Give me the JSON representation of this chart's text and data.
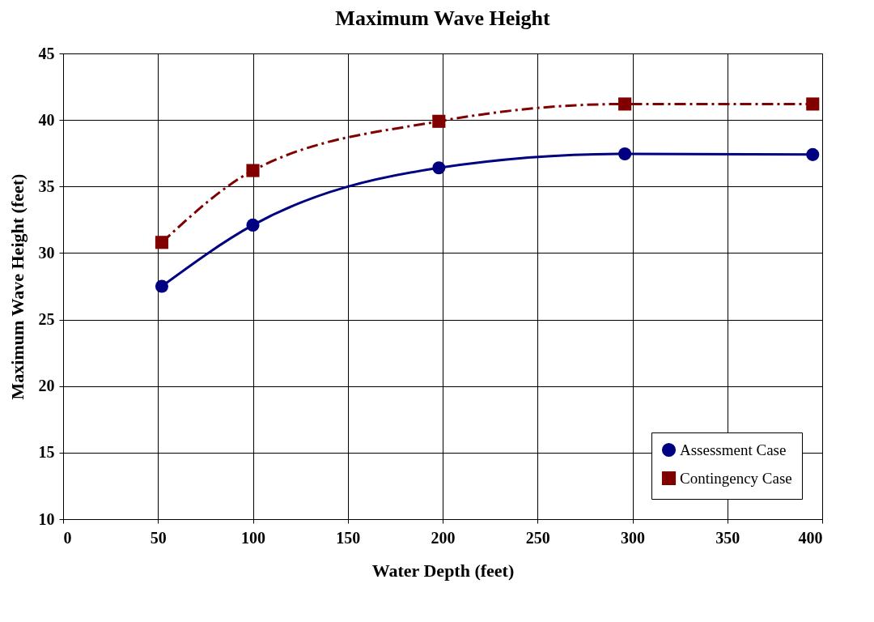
{
  "chart_data": {
    "type": "line",
    "title": "Maximum Wave Height",
    "xlabel": "Water Depth (feet)",
    "ylabel": "Maximum Wave Height (feet)",
    "x": [
      52,
      100,
      198,
      296,
      395
    ],
    "series": [
      {
        "name": "Assessment Case",
        "color": "#000080",
        "values": [
          27.5,
          32.1,
          36.4,
          37.45,
          37.4
        ],
        "marker": "circle",
        "line_style": "solid"
      },
      {
        "name": "Contingency Case",
        "color": "#800000",
        "values": [
          30.8,
          36.2,
          39.9,
          41.2,
          41.2
        ],
        "marker": "square",
        "line_style": "dashed"
      }
    ],
    "xlim": [
      0,
      400
    ],
    "xticks": [
      0,
      50,
      100,
      150,
      200,
      250,
      300,
      350,
      400
    ],
    "ylim": [
      10,
      45
    ],
    "yticks": [
      10,
      15,
      20,
      25,
      30,
      35,
      40,
      45
    ],
    "grid": true,
    "legend": "bottom right"
  }
}
